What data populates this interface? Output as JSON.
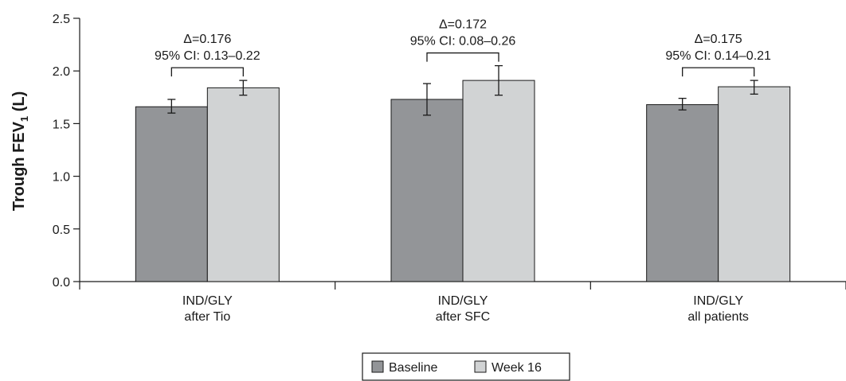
{
  "chart_data": {
    "type": "bar",
    "title": "",
    "ylabel": "Trough FEV",
    "ylabel_subscript": "1",
    "ylabel_unit": " (L)",
    "xlabel": "",
    "ylim": [
      0,
      2.5
    ],
    "yticks": [
      "0.0",
      "0.5",
      "1.0",
      "1.5",
      "2.0",
      "2.5"
    ],
    "categories": [
      [
        "IND/GLY",
        "after Tio"
      ],
      [
        "IND/GLY",
        "after SFC"
      ],
      [
        "IND/GLY",
        "all patients"
      ]
    ],
    "series": [
      {
        "name": "Baseline",
        "color": "#939598",
        "values": [
          1.66,
          1.73,
          1.68
        ],
        "error": [
          [
            1.6,
            1.73
          ],
          [
            1.58,
            1.88
          ],
          [
            1.63,
            1.74
          ]
        ]
      },
      {
        "name": "Week 16",
        "color": "#d1d3d4",
        "values": [
          1.84,
          1.91,
          1.85
        ],
        "error": [
          [
            1.77,
            1.91
          ],
          [
            1.77,
            2.05
          ],
          [
            1.78,
            1.91
          ]
        ]
      }
    ],
    "annotations": [
      {
        "delta": "Δ=0.176",
        "ci": "95% CI: 0.13–0.22"
      },
      {
        "delta": "Δ=0.172",
        "ci": "95% CI: 0.08–0.26"
      },
      {
        "delta": "Δ=0.175",
        "ci": "95% CI: 0.14–0.21"
      }
    ],
    "grid": false,
    "legend_position": "bottom-center"
  }
}
